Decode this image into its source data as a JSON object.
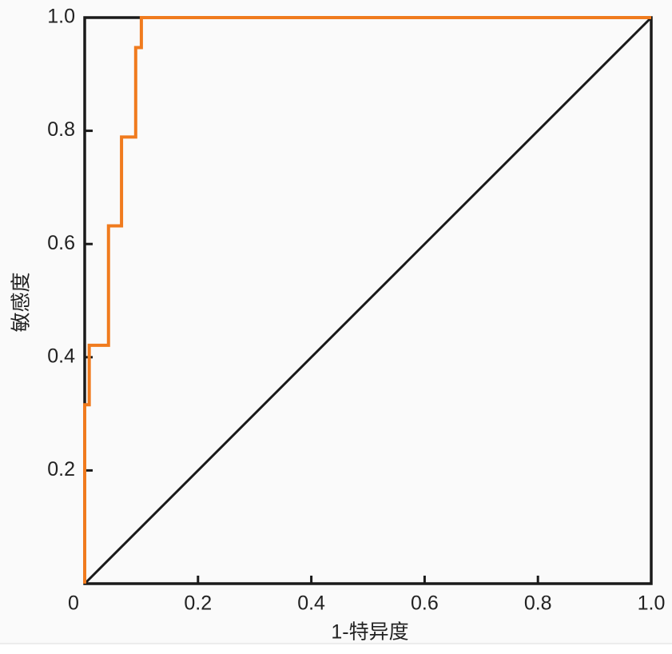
{
  "chart_data": {
    "type": "line",
    "xlabel": "1-特异度",
    "ylabel": "敏感度",
    "xlim": [
      0,
      1
    ],
    "ylim": [
      0,
      1
    ],
    "xticks": [
      0,
      0.2,
      0.4,
      0.6,
      0.8,
      {
        "value": 1,
        "label": "1.0"
      }
    ],
    "yticks": [
      0.2,
      0.4,
      0.6,
      0.8,
      {
        "value": 1,
        "label": "1.0"
      }
    ],
    "grid": false,
    "series": [
      {
        "color": "#f07b1e",
        "x": [
          0,
          0,
          0.008,
          0.008,
          0.042,
          0.042,
          0.065,
          0.065,
          0.09,
          0.09,
          0.1,
          0.1,
          1
        ],
        "values": [
          0,
          0.316,
          0.316,
          0.421,
          0.421,
          0.632,
          0.632,
          0.789,
          0.789,
          0.947,
          0.947,
          1,
          1
        ]
      },
      {
        "color": "#1a1a1a",
        "x": [
          0,
          1
        ],
        "values": [
          0,
          1
        ]
      }
    ]
  }
}
